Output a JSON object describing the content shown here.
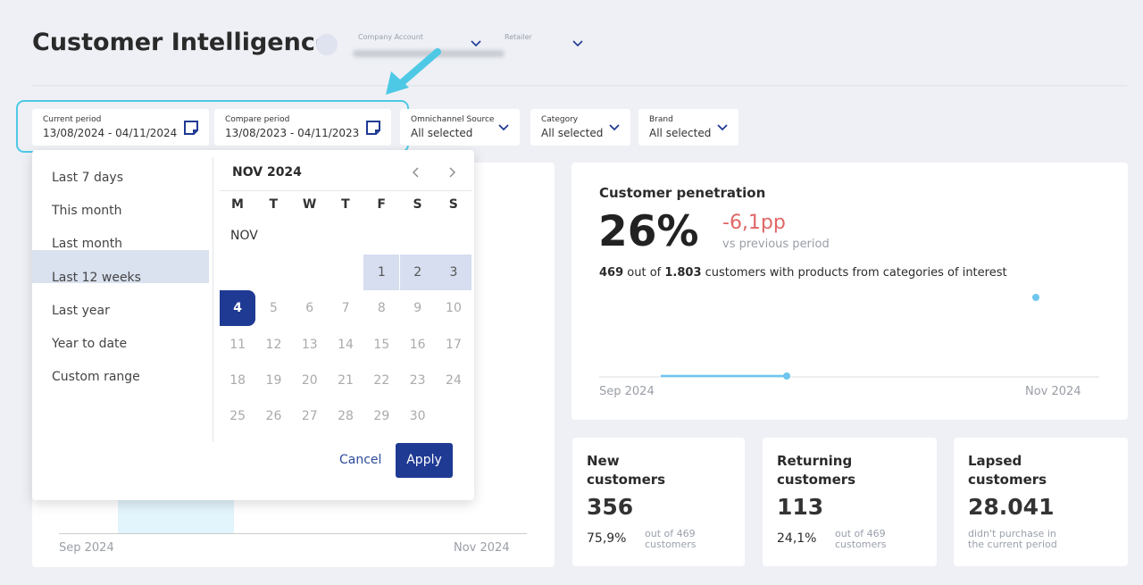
{
  "header": {
    "title": "Customer Intelligence",
    "company_account_label": "Company Account",
    "retailer_label": "Retailer"
  },
  "filters": [
    {
      "label": "Current period",
      "value": "13/08/2024 - 04/11/2024"
    },
    {
      "label": "Compare period",
      "value": "13/08/2023 - 04/11/2023"
    },
    {
      "label": "Omnichannel Source",
      "value": "All selected"
    },
    {
      "label": "Category",
      "value": "All selected"
    },
    {
      "label": "Brand",
      "value": "All selected"
    }
  ],
  "presets": [
    "Last 7 days",
    "This month",
    "Last month",
    "Last 12 weeks",
    "Last year",
    "Year to date",
    "Custom range"
  ],
  "calendar": {
    "month": "NOV 2024",
    "weekdays": [
      "M",
      "T",
      "W",
      "T",
      "F",
      "S",
      "S"
    ],
    "month_short": "NOV",
    "days": [
      1,
      2,
      3,
      4,
      5,
      6,
      7,
      8,
      9,
      10,
      11,
      12,
      13,
      14,
      15,
      16,
      17,
      18,
      19,
      20,
      21,
      22,
      23,
      24,
      25,
      26,
      27,
      28,
      29,
      30
    ],
    "cancel": "Cancel",
    "apply": "Apply"
  },
  "background_chart": {
    "x_start": "Sep 2024",
    "x_end": "Nov 2024"
  },
  "penetration": {
    "title": "Customer penetration",
    "value": "26%",
    "delta": "-6,1pp",
    "delta_note": "vs previous period",
    "count": "469",
    "out_of": "out of",
    "total": "1.803",
    "description": "customers with products from categories of interest",
    "x_start": "Sep 2024",
    "x_end": "Nov 2024"
  },
  "cards": [
    {
      "title_line1": "New",
      "title_line2": "customers",
      "value": "356",
      "percent": "75,9%",
      "note_line1": "out of 469",
      "note_line2": "customers"
    },
    {
      "title_line1": "Returning",
      "title_line2": "customers",
      "value": "113",
      "percent": "24,1%",
      "note_line1": "out of 469",
      "note_line2": "customers"
    },
    {
      "title_line1": "Lapsed",
      "title_line2": "customers",
      "value": "28.041",
      "note_line1": "didn't purchase in",
      "note_line2": "the current period"
    }
  ]
}
